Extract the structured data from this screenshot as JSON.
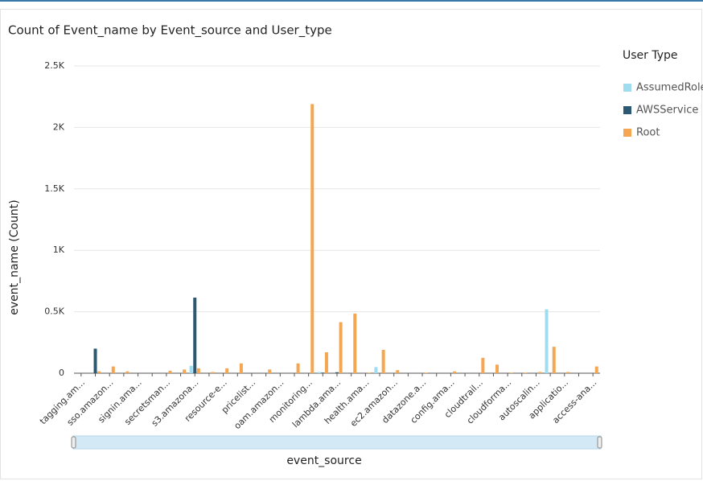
{
  "chart_data": {
    "type": "bar",
    "title": "Count of Event_name by Event_source and User_type",
    "x_label": "event_source",
    "y_label": "event_name (Count)",
    "legend_title": "User Type",
    "legend": "right",
    "grid": true,
    "categories": [
      "tagging.am...",
      null,
      "sso.amazon...",
      null,
      "signin.ama...",
      null,
      "secretsman...",
      null,
      "s3.amazona...",
      null,
      "resource-e...",
      null,
      "pricelist...",
      null,
      "oam.amazon...",
      null,
      "monitoring...",
      null,
      "lambda.ama...",
      null,
      "health.ama...",
      null,
      "ec2.amazon...",
      null,
      "datazone.a...",
      null,
      "config.ama...",
      null,
      "cloudtrail...",
      null,
      "cloudforma...",
      null,
      "autoscalin...",
      null,
      "applicatio...",
      null,
      "access-ana..."
    ],
    "series": [
      {
        "name": "AssumedRole",
        "color": "#9fdcef",
        "values": [
          0,
          0,
          0,
          0,
          0,
          0,
          0,
          0,
          60,
          0,
          0,
          0,
          0,
          0,
          0,
          0,
          0,
          10,
          0,
          0,
          0,
          50,
          0,
          0,
          0,
          0,
          0,
          0,
          0,
          0,
          0,
          0,
          0,
          520,
          0,
          0,
          0
        ]
      },
      {
        "name": "AWSService",
        "color": "#2b5873",
        "values": [
          0,
          200,
          0,
          0,
          0,
          0,
          0,
          0,
          615,
          0,
          0,
          0,
          0,
          0,
          0,
          0,
          0,
          5,
          8,
          0,
          0,
          0,
          0,
          0,
          0,
          0,
          0,
          0,
          0,
          0,
          0,
          0,
          0,
          0,
          0,
          0,
          0
        ]
      },
      {
        "name": "Root",
        "color": "#f5a650",
        "values": [
          0,
          15,
          55,
          15,
          0,
          0,
          20,
          30,
          40,
          10,
          40,
          80,
          0,
          30,
          0,
          80,
          2190,
          170,
          415,
          485,
          5,
          190,
          25,
          0,
          5,
          0,
          15,
          0,
          125,
          70,
          5,
          5,
          10,
          215,
          10,
          0,
          55
        ]
      }
    ],
    "ylim": [
      0,
      2500
    ],
    "yticks": [
      0,
      {
        "value": 500,
        "label": "0.5K"
      },
      {
        "value": 1000,
        "label": "1K"
      },
      {
        "value": 1500,
        "label": "1.5K"
      },
      {
        "value": 2000,
        "label": "2K"
      },
      {
        "value": 2500,
        "label": "2.5K"
      }
    ]
  }
}
